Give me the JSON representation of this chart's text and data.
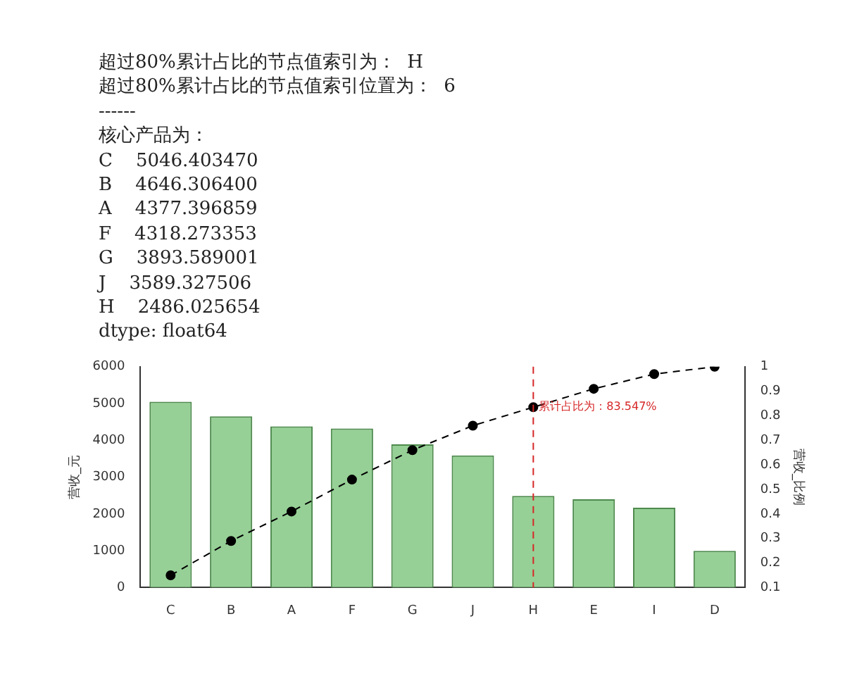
{
  "chart_data": {
    "type": "bar",
    "annotations": [
      "超过80%累计占比的节点值索引为：  H",
      "超过80%累计占比的节点值索引位置为：  6",
      "------",
      "核心产品为：",
      "C    5046.403470",
      "B    4646.306400",
      "A    4377.396859",
      "F    4318.273353",
      "G    3893.589001",
      "J    3589.327506",
      "H    2486.025654",
      "dtype: float64",
      {
        "text": "累计占比为：83.547%",
        "x": "H",
        "y": 4900
      }
    ],
    "categories": [
      "C",
      "B",
      "A",
      "F",
      "G",
      "J",
      "H",
      "E",
      "I",
      "D"
    ],
    "series": [
      {
        "color": "#7cc47c",
        "values": [
          5050,
          4650,
          4380,
          4320,
          3890,
          3590,
          2490,
          2400,
          2170,
          1000
        ]
      },
      {
        "type": "line",
        "axis": "y2",
        "color": "#000000",
        "marker": "circle",
        "line_style": "dashed",
        "values": [
          0.15,
          0.29,
          0.41,
          0.54,
          0.66,
          0.76,
          0.835,
          0.91,
          0.97,
          1.0
        ]
      }
    ],
    "ylabel": "营收_元",
    "y2label": "营收_比例",
    "ylim": [
      0,
      6000
    ],
    "yticks": [
      0,
      1000,
      2000,
      3000,
      4000,
      5000,
      6000
    ],
    "y2lim": [
      0.1,
      1.0
    ],
    "y2ticks": [
      0.1,
      0.2,
      0.3,
      0.4,
      0.5,
      0.6,
      0.7,
      0.8,
      0.9,
      1.0
    ],
    "ref_lines": [
      {
        "axis": "x",
        "value": "H",
        "color": "#d62728",
        "line_style": "dashed"
      }
    ],
    "grid": false,
    "legend": false
  }
}
